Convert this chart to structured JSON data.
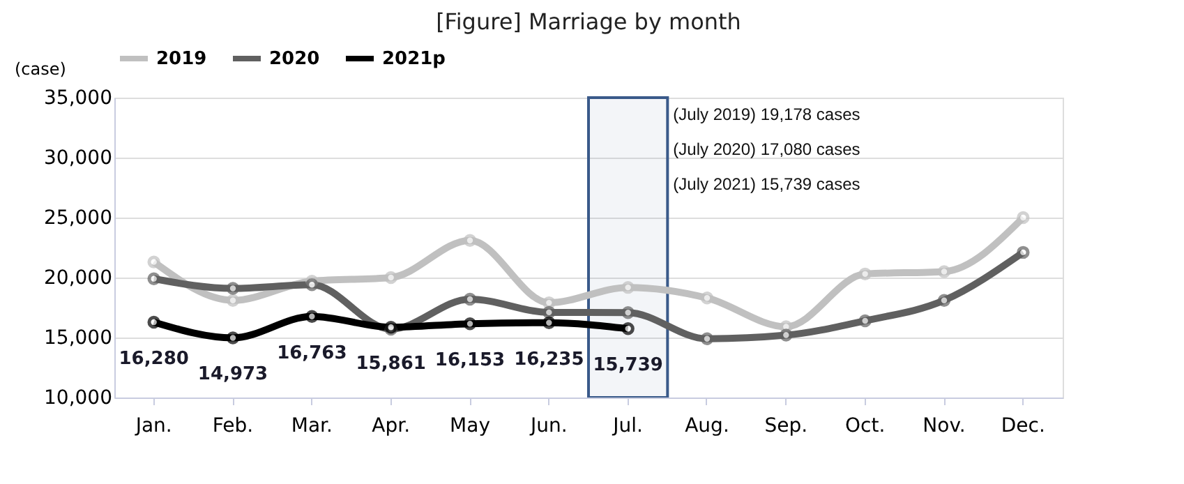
{
  "chart_data": {
    "type": "line",
    "title": "[Figure]  Marriage  by  month",
    "ylabel": "(case)",
    "categories": [
      "Jan.",
      "Feb.",
      "Mar.",
      "Apr.",
      "May",
      "Jun.",
      "Jul.",
      "Aug.",
      "Sep.",
      "Oct.",
      "Nov.",
      "Dec."
    ],
    "series": [
      {
        "name": "2019",
        "color": "#c0c0c0",
        "values": [
          21300,
          18100,
          19700,
          20000,
          23100,
          17900,
          19178,
          18300,
          15900,
          20300,
          20500,
          25000
        ]
      },
      {
        "name": "2020",
        "color": "#606060",
        "values": [
          19900,
          19100,
          19400,
          15700,
          18200,
          17100,
          17080,
          14900,
          15200,
          16400,
          18100,
          22100
        ]
      },
      {
        "name": "2021p",
        "color": "#000000",
        "values": [
          16280,
          14973,
          16763,
          15861,
          16153,
          16235,
          15739,
          null,
          null,
          null,
          null,
          null
        ],
        "value_labels": [
          "16,280",
          "14,973",
          "16,763",
          "15,861",
          "16,153",
          "16,235",
          "15,739",
          null,
          null,
          null,
          null,
          null
        ]
      }
    ],
    "ylim": [
      10000,
      35000
    ],
    "yticks": [
      {
        "value": 10000,
        "label": "10,000"
      },
      {
        "value": 15000,
        "label": "15,000"
      },
      {
        "value": 20000,
        "label": "20,000"
      },
      {
        "value": 25000,
        "label": "25,000"
      },
      {
        "value": 30000,
        "label": "30,000"
      },
      {
        "value": 35000,
        "label": "35,000"
      }
    ],
    "bands": [
      {
        "axis": "x",
        "from": "Jul.",
        "to": "Jul.",
        "color": "#3a5a8a"
      }
    ],
    "annotations": [
      "(July 2019) 19,178 cases",
      "(July 2020) 17,080 cases",
      "(July 2021) 15,739 cases"
    ],
    "grid": "y",
    "legend": "top",
    "marker": "circle",
    "line_style": "solid"
  }
}
